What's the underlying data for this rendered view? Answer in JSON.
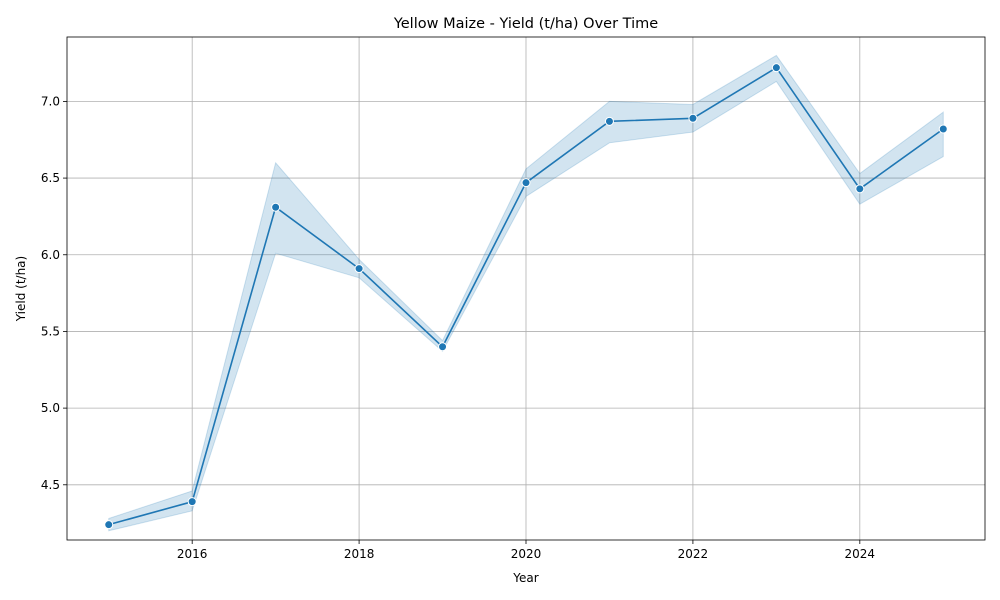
{
  "chart_data": {
    "type": "line",
    "title": "Yellow Maize - Yield (t/ha) Over Time",
    "xlabel": "Year",
    "ylabel": "Yield (t/ha)",
    "x": [
      2015,
      2016,
      2017,
      2018,
      2019,
      2020,
      2021,
      2022,
      2023,
      2024,
      2025
    ],
    "series": [
      {
        "values": [
          4.24,
          4.39,
          6.31,
          5.91,
          5.4,
          6.47,
          6.87,
          6.89,
          7.22,
          6.43,
          6.82
        ],
        "ci_upper": [
          4.28,
          4.46,
          6.6,
          5.97,
          5.44,
          6.56,
          7.0,
          6.98,
          7.3,
          6.53,
          6.93
        ],
        "ci_lower": [
          4.2,
          4.33,
          6.01,
          5.85,
          5.37,
          6.38,
          6.73,
          6.8,
          7.13,
          6.33,
          6.64
        ]
      }
    ],
    "xlim": [
      2014.5,
      2025.5
    ],
    "ylim": [
      4.14,
      7.42
    ],
    "x_ticks": [
      "2016",
      "2018",
      "2020",
      "2022",
      "2024"
    ],
    "y_ticks": [
      "4.5",
      "5.0",
      "5.5",
      "6.0",
      "6.5",
      "7.0"
    ],
    "grid": true,
    "colors": {
      "line": "#1f77b4",
      "band": "#1f77b4",
      "grid": "#b0b0b0"
    }
  }
}
